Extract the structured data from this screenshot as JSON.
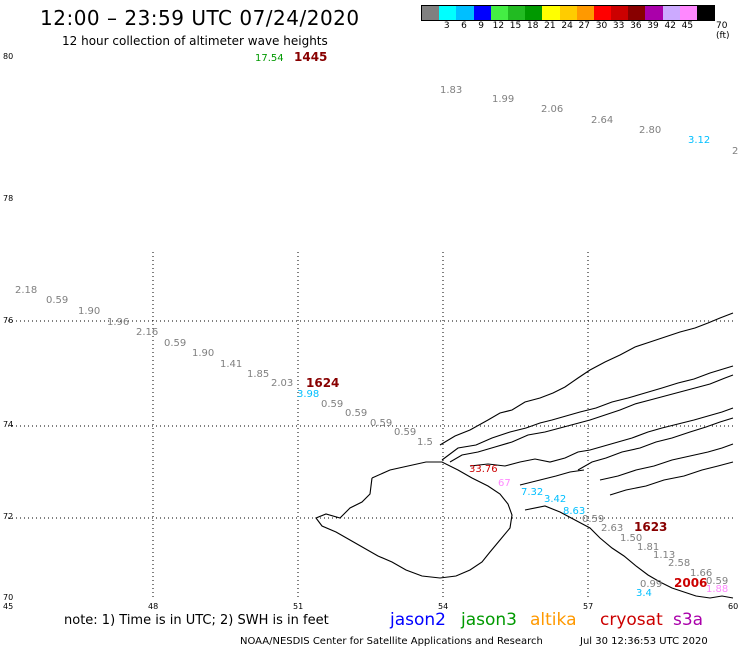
{
  "header": {
    "title": "12:00 – 23:59 UTC 07/24/2020",
    "subtitle": "12 hour collection of altimeter wave heights"
  },
  "legend": {
    "colors": [
      "#808080",
      "#00ffff",
      "#00bfff",
      "#0000ff",
      "#44ee44",
      "#22bb22",
      "#009900",
      "#ffff00",
      "#ffcc00",
      "#ff9900",
      "#ff0000",
      "#cc0000",
      "#880000",
      "#aa00aa",
      "#ccaaff",
      "#ff88ff",
      "#000000"
    ],
    "ticks": [
      "3",
      "6",
      "9",
      "12",
      "15",
      "18",
      "21",
      "24",
      "27",
      "30",
      "33",
      "36",
      "39",
      "42",
      "45",
      "70"
    ],
    "unit": "(ft)"
  },
  "axes": {
    "x_ticks": [
      "45",
      "48",
      "51",
      "54",
      "57",
      "60"
    ],
    "y_ticks": [
      "80",
      "78",
      "76",
      "74",
      "72",
      "70"
    ]
  },
  "labels": {
    "time_labels": [
      "1445",
      "1624",
      "1623",
      "2006"
    ],
    "wave_heights": [
      "17.54",
      "1.83",
      "1.99",
      "2.06",
      "2.64",
      "2.80",
      "3.12",
      "2",
      "2.18",
      "0.59",
      "1.90",
      "1.96",
      "2.16",
      "0.59",
      "1.90",
      "1.41",
      "1.85",
      "2.03",
      "3.98",
      "0.59",
      "0.59",
      "0.59",
      "0.59",
      "1.5",
      "33.76",
      "67",
      "7.32",
      "3.42",
      "8.63",
      "0.59",
      "2.63",
      "1.50",
      "1.81",
      "1.13",
      "2.58",
      "1.66",
      "0.59",
      "0.99",
      "3.4",
      "1.88"
    ]
  },
  "footer": {
    "note": "note: 1) Time is in UTC; 2) SWH is in feet",
    "satellites": [
      "jason2",
      "jason3",
      "altika",
      "cryosat",
      "s3a"
    ],
    "satellite_colors": [
      "#0000ff",
      "#009900",
      "#ff9900",
      "#cc0000",
      "#aa00aa"
    ],
    "credit": "NOAA/NESDIS Center for Satellite Applications and Research",
    "timestamp": "Jul 30 12:36:53 UTC 2020"
  }
}
